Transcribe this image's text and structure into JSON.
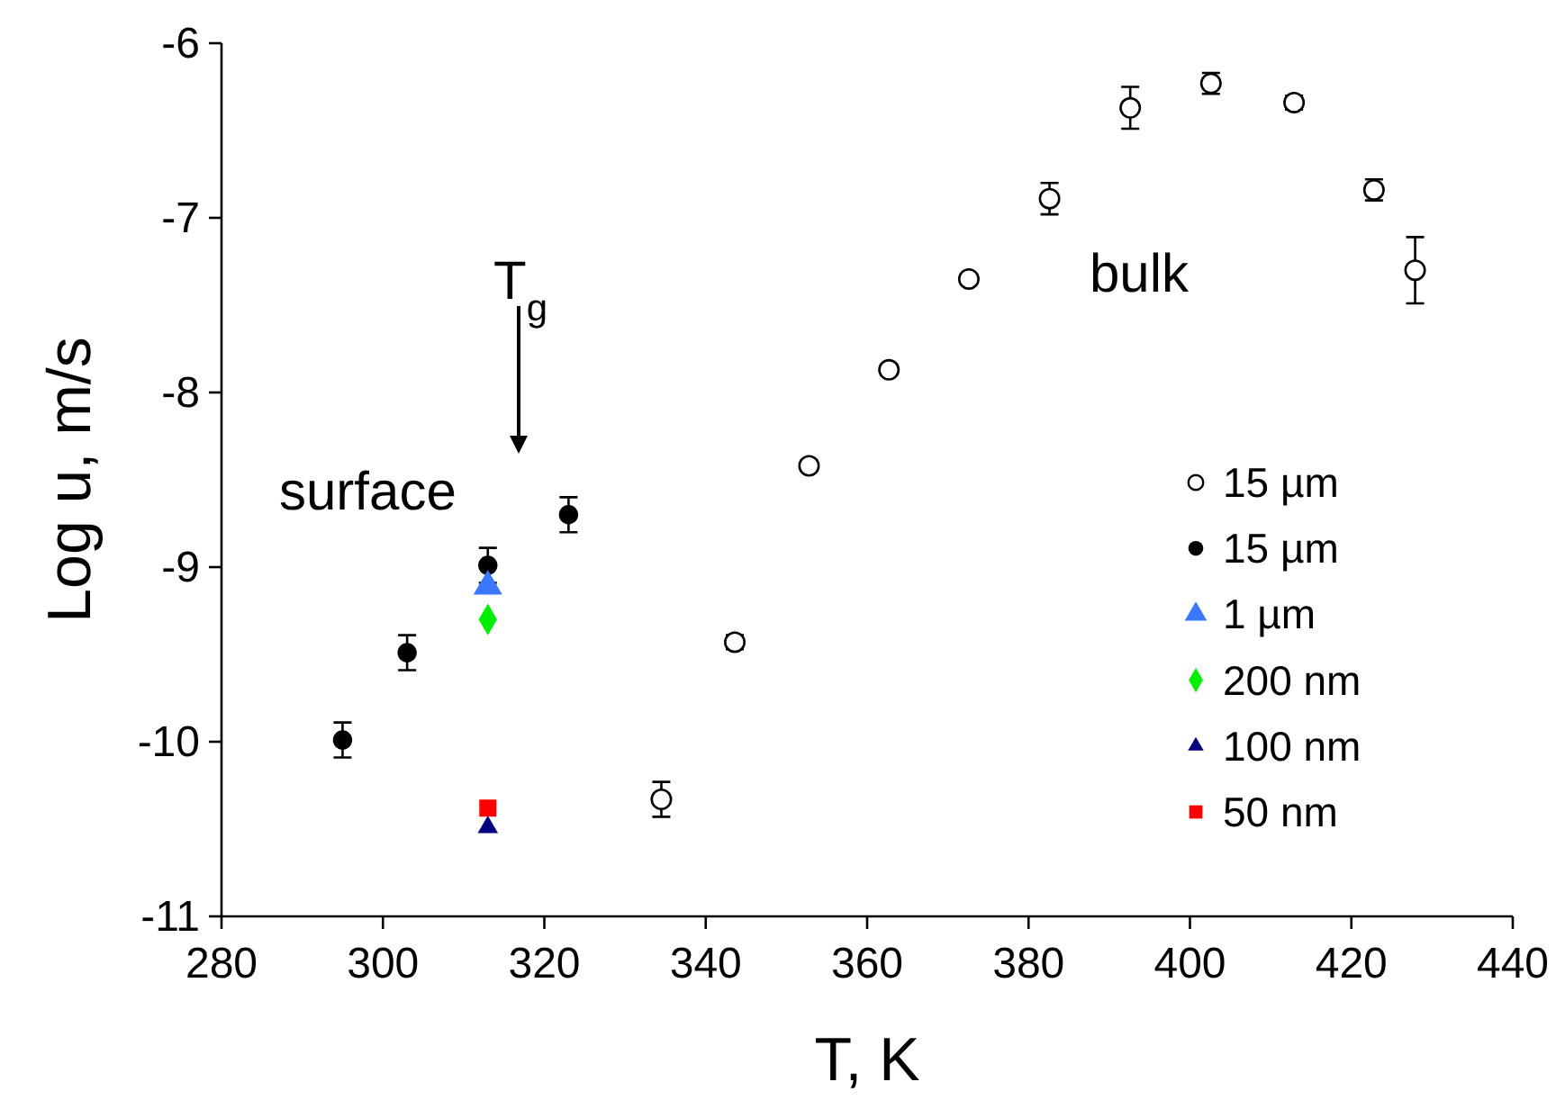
{
  "chart_data": {
    "type": "scatter",
    "xlabel": "T, K",
    "ylabel": "Log u, m/s",
    "xlim": [
      280,
      440
    ],
    "xticks": [
      280,
      300,
      320,
      340,
      360,
      380,
      400,
      420,
      440
    ],
    "ylim": [
      -11,
      -6
    ],
    "yticks": [
      -11,
      -10,
      -9,
      -8,
      -7,
      -6
    ],
    "grid": false,
    "legend": "right",
    "annotations": [
      "T$_{g}$",
      "surface",
      "bulk"
    ],
    "series": [
      {
        "name": "15 µm",
        "color": "#ffffff",
        "marker": "circle",
        "x": [
          334.5,
          343.6,
          352.8,
          362.7,
          372.6,
          382.6,
          392.6,
          402.6,
          412.9,
          422.8,
          427.9
        ],
        "values": [
          -10.33,
          -9.43,
          -8.42,
          -7.87,
          -7.35,
          -6.89,
          -6.37,
          -6.23,
          -6.34,
          -6.84,
          -7.3
        ],
        "errors": [
          0.1,
          0.04,
          0.03,
          0.03,
          0.02,
          0.09,
          0.12,
          0.06,
          0.04,
          0.06,
          0.19
        ]
      },
      {
        "name": "15 µm",
        "color": "#000000",
        "marker": "circle",
        "x": [
          295,
          303,
          313,
          323
        ],
        "values": [
          -9.99,
          -9.49,
          -8.99,
          -8.7
        ],
        "errors": [
          0.1,
          0.1,
          0.1,
          0.1
        ]
      },
      {
        "name": "1 µm",
        "color": "#3b78ff",
        "marker": "triangle",
        "x": [
          313
        ],
        "values": [
          -9.11
        ]
      },
      {
        "name": "200 nm",
        "color": "#00ee00",
        "marker": "diamond",
        "x": [
          313
        ],
        "values": [
          -9.3
        ]
      },
      {
        "name": "100 nm",
        "color": "#000080",
        "marker": "triangle",
        "x": [
          313
        ],
        "values": [
          -10.49
        ]
      },
      {
        "name": "50 nm",
        "color": "#ff0000",
        "marker": "square",
        "x": [
          313
        ],
        "values": [
          -10.38
        ]
      }
    ]
  }
}
